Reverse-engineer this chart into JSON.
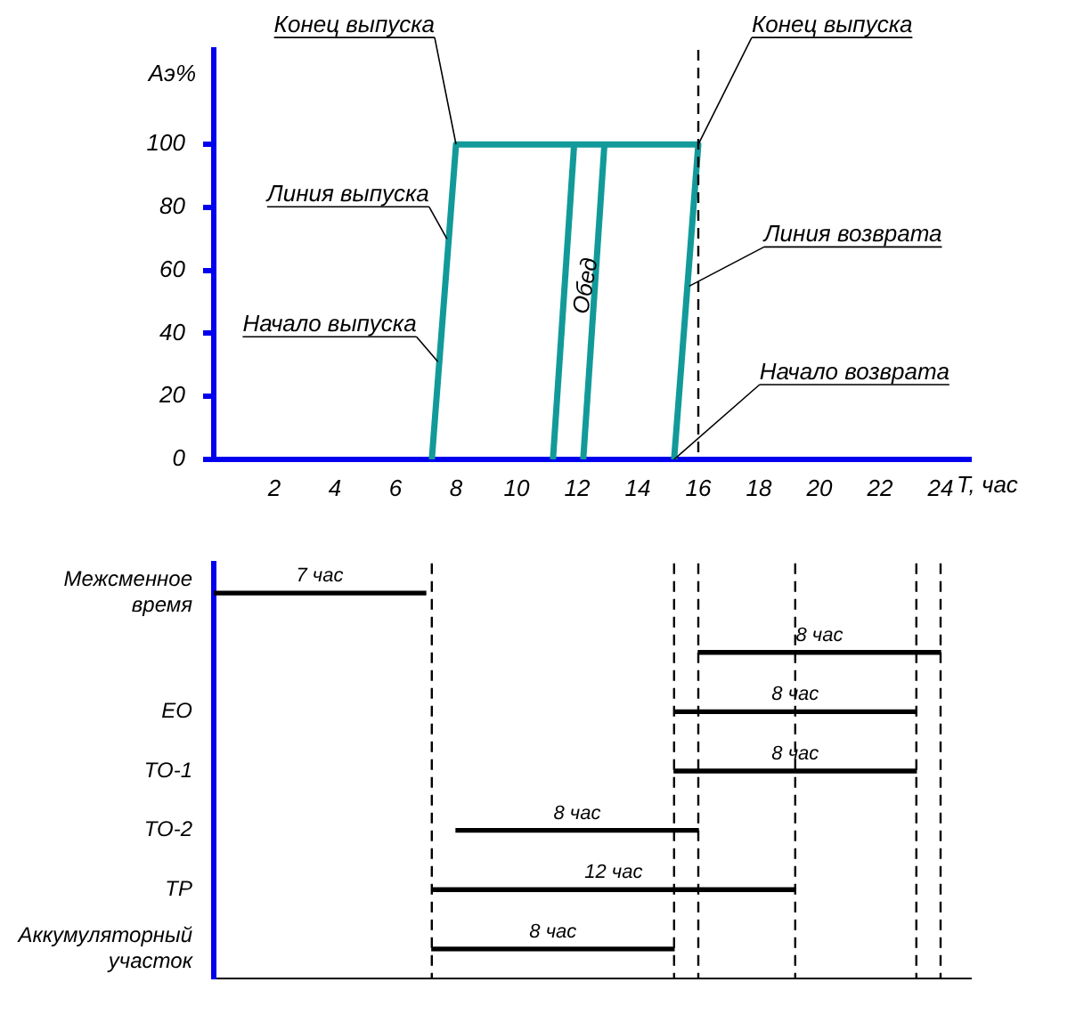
{
  "chart_data": [
    {
      "type": "line",
      "xlabel": "T, час",
      "ylabel": "Аэ%",
      "xlim": [
        0,
        25
      ],
      "xticks": [
        2,
        4,
        6,
        8,
        10,
        12,
        14,
        16,
        18,
        20,
        22,
        24
      ],
      "ylim": [
        0,
        130
      ],
      "yticks": [
        0,
        20,
        40,
        60,
        80,
        100
      ],
      "grid": false,
      "legend": false,
      "series": [
        {
          "color": "#129a9a",
          "x": [
            7.2,
            8,
            16,
            15.2
          ],
          "values": [
            0,
            100,
            100,
            0
          ]
        },
        {
          "color": "#129a9a",
          "x": [
            11.2,
            11.9
          ],
          "values": [
            0,
            100
          ]
        },
        {
          "color": "#129a9a",
          "x": [
            12.2,
            12.9
          ],
          "values": [
            0,
            100
          ]
        }
      ],
      "ref_lines": [
        {
          "axis": "x",
          "value": 16,
          "line_style": "dashed",
          "color": "#000000"
        }
      ],
      "annotations": [
        {
          "text": "Конец выпуска",
          "x": 8,
          "y": 100
        },
        {
          "text": "Конец выпуска",
          "x": 16,
          "y": 100
        },
        {
          "text": "Линия выпуска",
          "x": 7.7,
          "y": 70
        },
        {
          "text": "Начало выпуска",
          "x": 7.4,
          "y": 31
        },
        {
          "text": "Линия возврата",
          "x": 15.7,
          "y": 55
        },
        {
          "text": "Начало возврата",
          "x": 15.2,
          "y": 0
        },
        {
          "text": "Обед",
          "x": 12.3,
          "y": 55
        }
      ]
    },
    {
      "type": "bar",
      "orientation": "horizontal",
      "color": "#000000",
      "tick_labels": "y",
      "xlim": [
        0,
        25
      ],
      "categories": [
        "Межсменное время",
        null,
        "ЕО",
        "ТО-1",
        "ТО-2",
        "ТР",
        "Аккумуляторный участок"
      ],
      "base": [
        0,
        16,
        15.2,
        15.2,
        8,
        7.2,
        7.2
      ],
      "values": [
        7,
        8,
        8,
        8,
        8,
        12,
        8
      ],
      "value_labels": [
        "7 час",
        "8 час",
        "8 час",
        "8 час",
        "8 час",
        "12 час",
        "8 час"
      ],
      "ref_lines": [
        {
          "axis": "x",
          "value": 7.2,
          "line_style": "dashed",
          "color": "#000000"
        },
        {
          "axis": "x",
          "value": 15.2,
          "line_style": "dashed",
          "color": "#000000"
        },
        {
          "axis": "x",
          "value": 16,
          "line_style": "dashed",
          "color": "#000000"
        },
        {
          "axis": "x",
          "value": 19.2,
          "line_style": "dashed",
          "color": "#000000"
        },
        {
          "axis": "x",
          "value": 23.2,
          "line_style": "dashed",
          "color": "#000000"
        },
        {
          "axis": "x",
          "value": 24,
          "line_style": "dashed",
          "color": "#000000"
        }
      ]
    }
  ]
}
